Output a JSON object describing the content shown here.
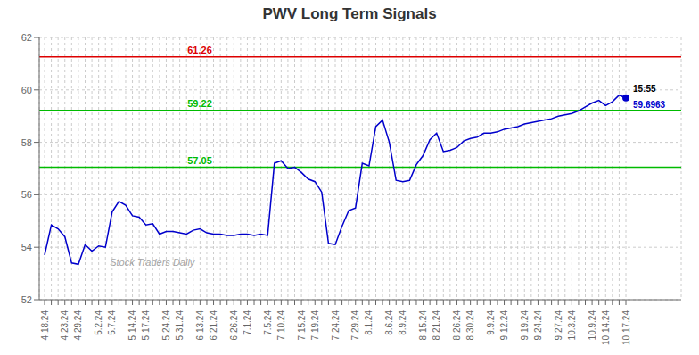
{
  "chart_data": {
    "type": "line",
    "title": "PWV Long Term Signals",
    "categories": [
      "4.18.24",
      null,
      null,
      "4.23.24",
      null,
      "4.29.24",
      null,
      null,
      "5.2.24",
      null,
      "5.7.24",
      null,
      null,
      "5.14.24",
      null,
      "5.17.24",
      null,
      null,
      "5.24.24",
      null,
      "5.31.24",
      null,
      null,
      "6.13.24",
      null,
      "6.21.24",
      null,
      null,
      "6.26.24",
      null,
      "7.1.24",
      null,
      null,
      "7.5.24",
      null,
      "7.10.24",
      null,
      null,
      "7.15.24",
      null,
      "7.19.24",
      null,
      null,
      "7.24.24",
      null,
      null,
      "7.29.24",
      null,
      "8.1.24",
      null,
      null,
      "8.6.24",
      null,
      "8.9.24",
      null,
      null,
      "8.15.24",
      null,
      "8.21.24",
      null,
      null,
      "8.26.24",
      null,
      "8.30.24",
      null,
      null,
      "9.9.24",
      null,
      "9.12.24",
      null,
      null,
      "9.19.24",
      null,
      "9.24.24",
      null,
      null,
      "9.27.24",
      null,
      "10.3.24",
      null,
      null,
      "10.9.24",
      null,
      "10.14.24",
      null,
      null,
      "10.17.24"
    ],
    "series": [
      {
        "color": "#0000cc",
        "values": [
          53.7,
          54.85,
          54.7,
          54.4,
          53.4,
          53.35,
          54.1,
          53.85,
          54.05,
          54.0,
          55.35,
          55.75,
          55.6,
          55.2,
          55.15,
          54.85,
          54.9,
          54.5,
          54.6,
          54.6,
          54.55,
          54.5,
          54.65,
          54.7,
          54.55,
          54.5,
          54.5,
          54.45,
          54.45,
          54.5,
          54.5,
          54.45,
          54.5,
          54.45,
          57.2,
          57.3,
          57.0,
          57.05,
          56.85,
          56.6,
          56.5,
          56.1,
          54.15,
          54.1,
          54.8,
          55.4,
          55.5,
          57.2,
          57.1,
          58.6,
          58.85,
          58.0,
          56.55,
          56.5,
          56.55,
          57.15,
          57.5,
          58.1,
          58.35,
          57.65,
          57.7,
          57.8,
          58.05,
          58.15,
          58.2,
          58.35,
          58.35,
          58.4,
          58.5,
          58.55,
          58.6,
          58.7,
          58.75,
          58.8,
          58.85,
          58.9,
          59.0,
          59.05,
          59.1,
          59.2,
          59.35,
          59.5,
          59.6,
          59.4,
          59.55,
          59.8,
          59.6963
        ]
      }
    ],
    "ylim": [
      52,
      62
    ],
    "yticks": [
      52,
      54,
      56,
      58,
      60,
      62
    ],
    "grid": true,
    "hlines": [
      {
        "value": 61.26,
        "label": "61.26",
        "color": "#dd0000"
      },
      {
        "value": 59.22,
        "label": "59.22",
        "color": "#00bb00"
      },
      {
        "value": 57.05,
        "label": "57.05",
        "color": "#00bb00"
      }
    ],
    "annotations": [
      {
        "text": "15:55"
      },
      {
        "text": "59.6963",
        "color": "#0000cc"
      }
    ],
    "watermark": "Stock Traders Daily"
  }
}
